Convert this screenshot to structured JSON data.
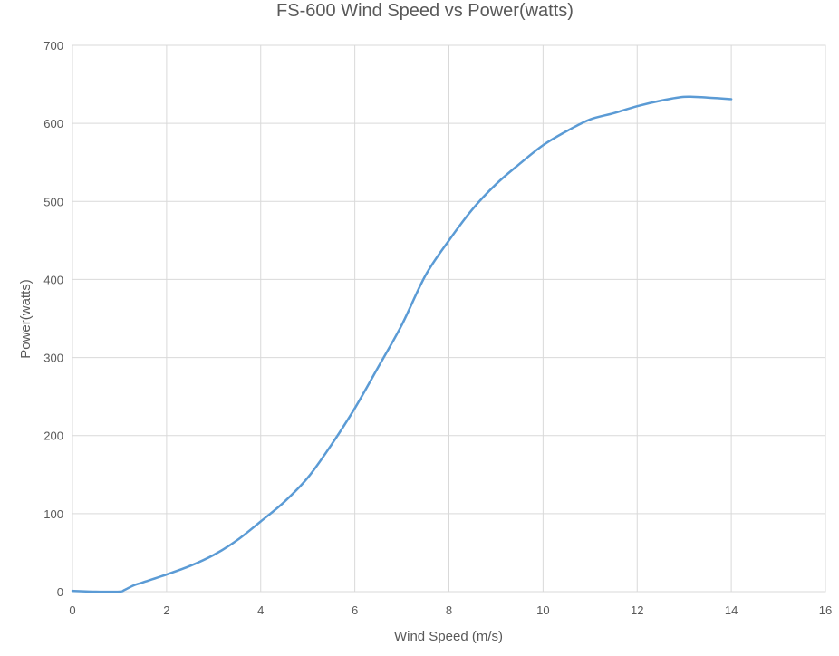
{
  "chart_data": {
    "type": "line",
    "title": "FS-600 Wind Speed vs Power(watts)",
    "xlabel": "Wind Speed (m/s)",
    "ylabel": "Power(watts)",
    "xlim": [
      0,
      16
    ],
    "ylim": [
      0,
      700
    ],
    "xticks": [
      "0",
      "2",
      "4",
      "6",
      "8",
      "10",
      "12",
      "14",
      "16"
    ],
    "yticks": [
      "0",
      "100",
      "200",
      "300",
      "400",
      "500",
      "600",
      "700"
    ],
    "grid": true,
    "legend": "none",
    "series": [
      {
        "color": "#5B9BD5",
        "x": [
          0,
          0.5,
          1,
          1.1,
          1.3,
          1.5,
          2,
          2.5,
          3,
          3.5,
          4,
          4.5,
          5,
          5.5,
          6,
          6.5,
          7,
          7.5,
          8,
          8.5,
          9,
          9.5,
          10,
          10.5,
          11,
          11.5,
          12,
          12.5,
          13,
          13.5,
          14
        ],
        "y": [
          1,
          0,
          0,
          2,
          8,
          12,
          22,
          33,
          47,
          66,
          90,
          115,
          146,
          188,
          235,
          288,
          342,
          405,
          450,
          490,
          522,
          548,
          572,
          590,
          605,
          613,
          622,
          629,
          634,
          633,
          631
        ]
      }
    ]
  }
}
